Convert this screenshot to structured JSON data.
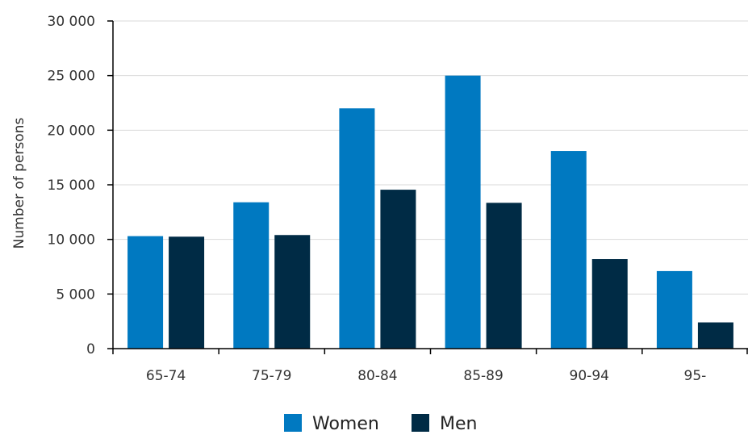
{
  "chart_data": {
    "type": "bar",
    "title": "",
    "xlabel": "",
    "ylabel": "Number of persons",
    "categories": [
      "65-74",
      "75-79",
      "80-84",
      "85-89",
      "90-94",
      "95-"
    ],
    "series": [
      {
        "name": "Women",
        "color": "#0079C1",
        "values": [
          10300,
          13400,
          22000,
          25000,
          18100,
          7100
        ]
      },
      {
        "name": "Men",
        "color": "#002B45",
        "values": [
          10250,
          10400,
          14550,
          13350,
          8200,
          2400
        ]
      }
    ],
    "ylim": [
      0,
      30000
    ],
    "yticks": [
      0,
      5000,
      10000,
      15000,
      20000,
      25000,
      30000
    ],
    "ytick_labels": [
      "0",
      "5 000",
      "10 000",
      "15 000",
      "20 000",
      "25 000",
      "30 000"
    ],
    "grid": true,
    "legend_position": "bottom"
  }
}
